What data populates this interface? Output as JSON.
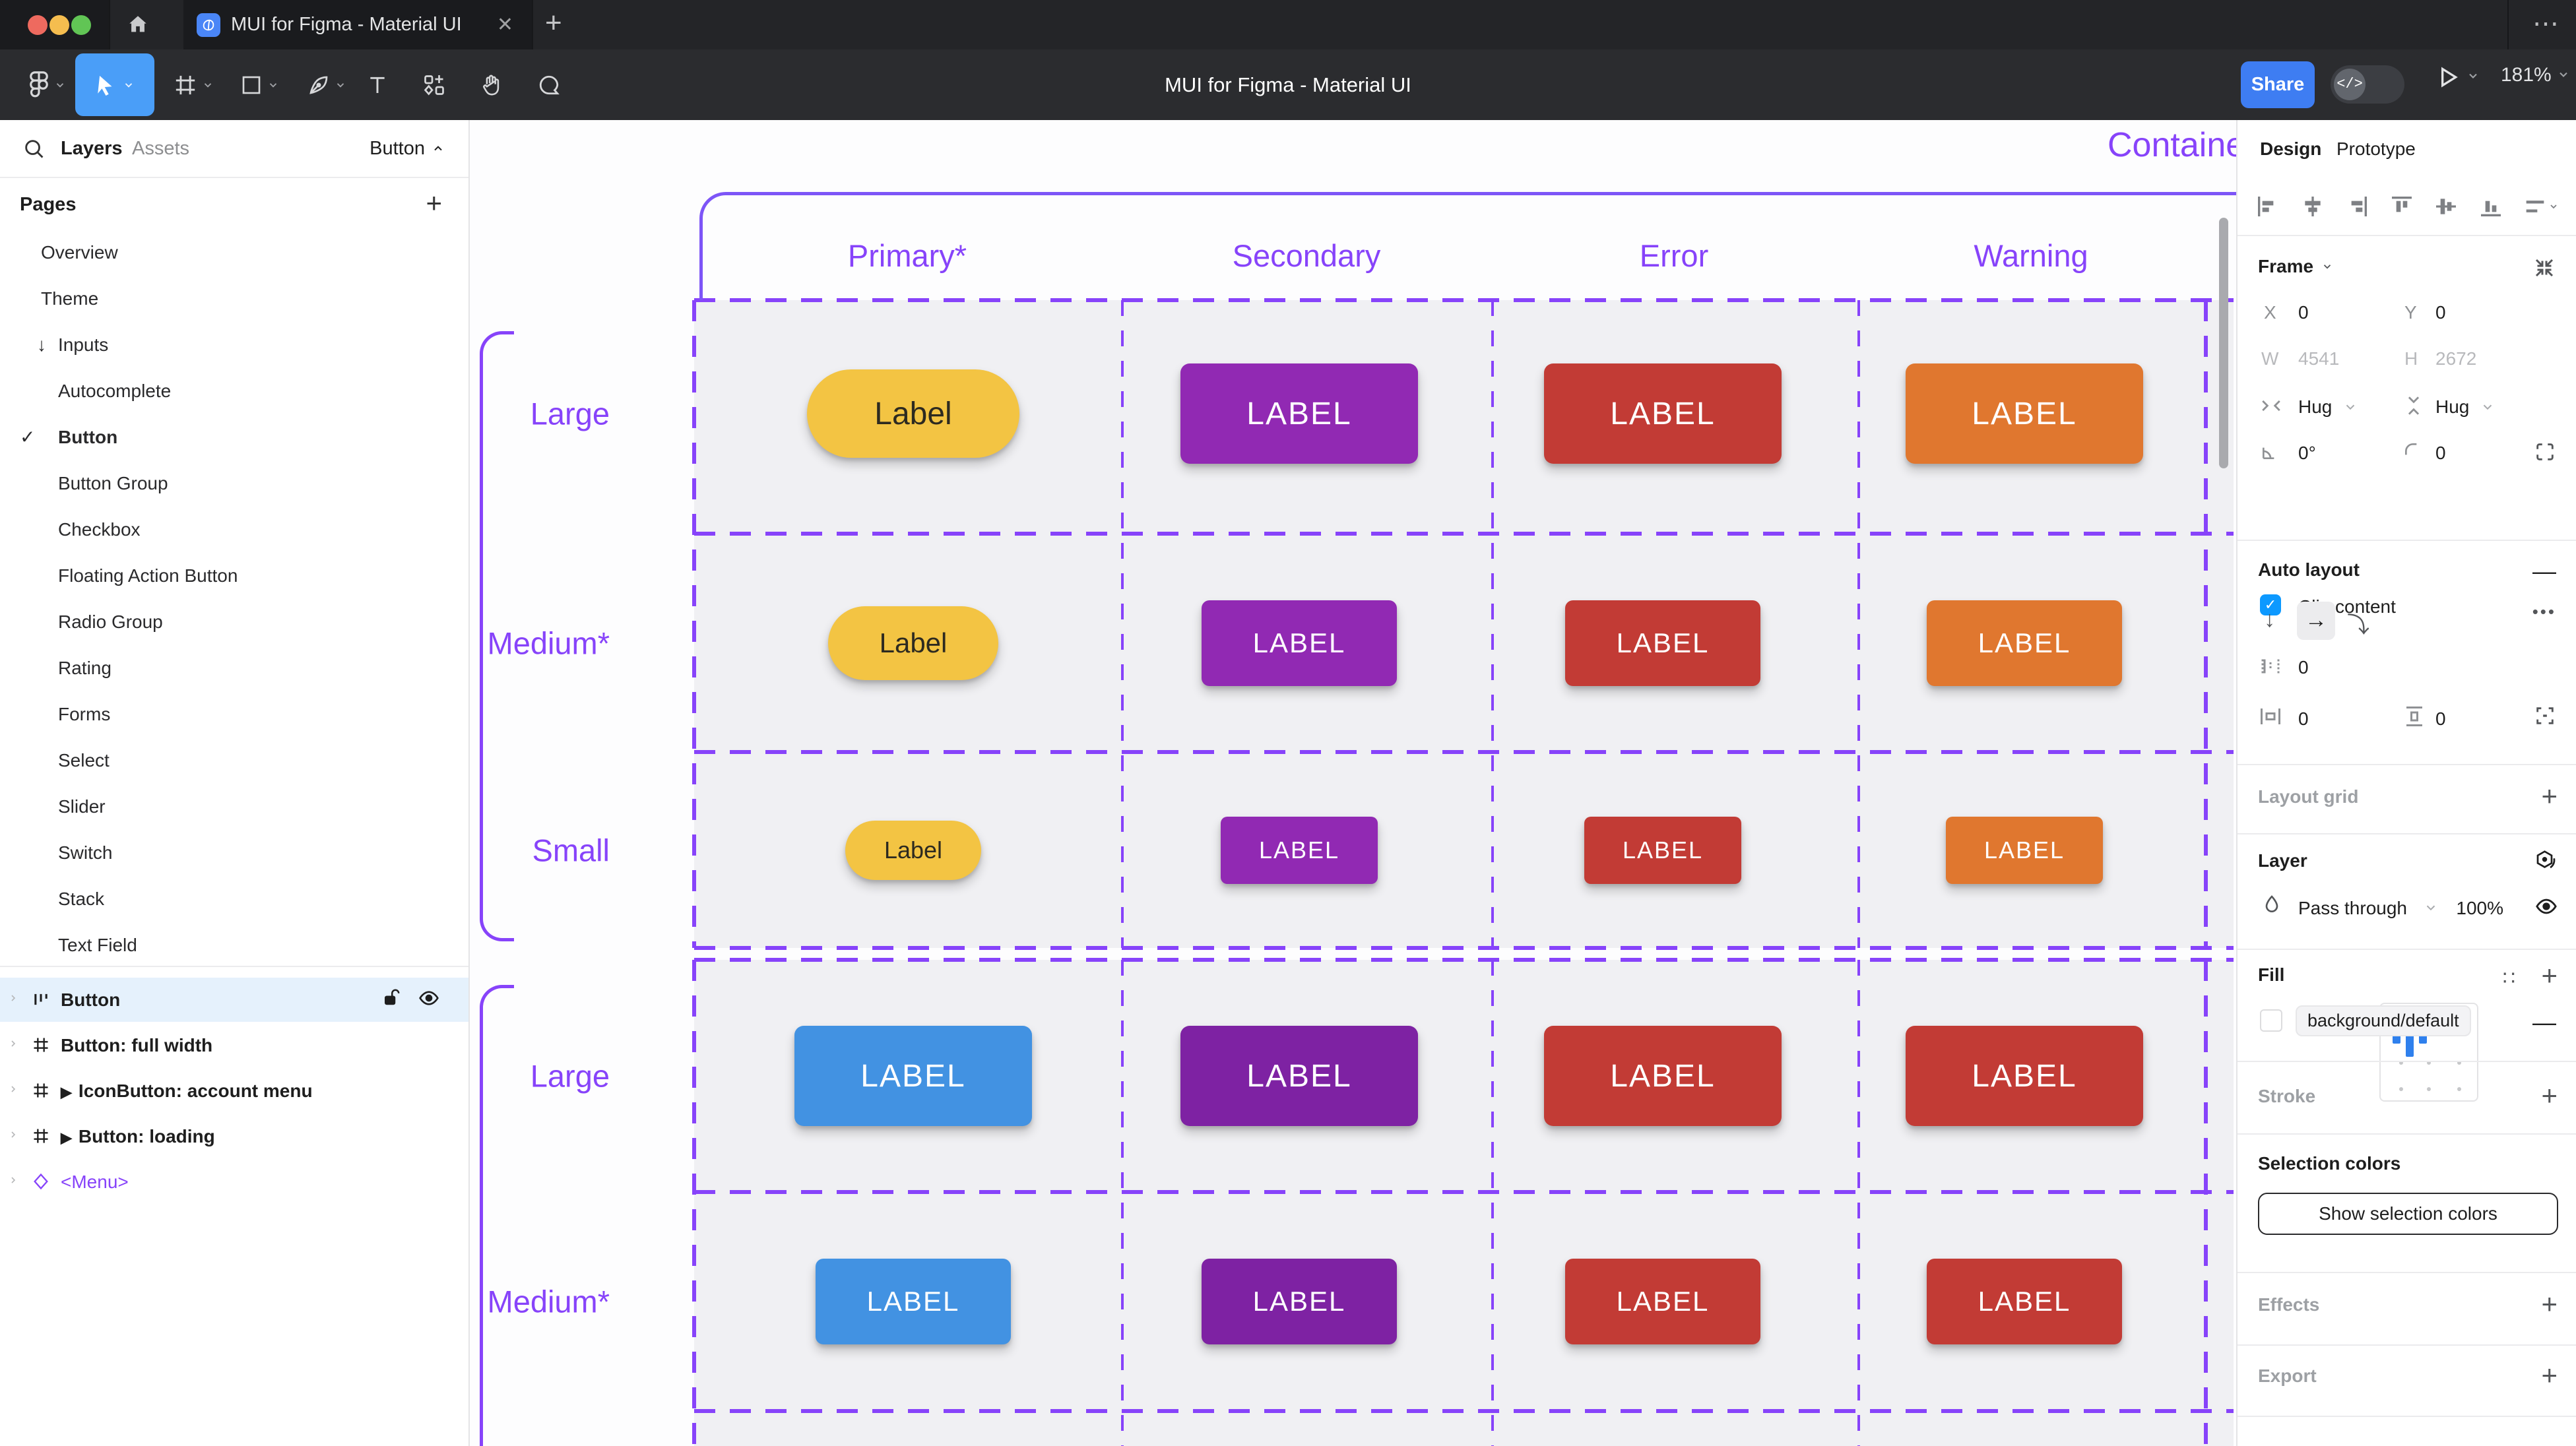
{
  "window": {
    "tab_title": "MUI for Figma - Material UI",
    "close_glyph": "✕",
    "new_tab_glyph": "+",
    "menu_dots_glyph": "⋯"
  },
  "toolbar": {
    "title": "MUI for Figma - Material UI",
    "share_label": "Share",
    "devmode_glyph": "</>",
    "zoom_level": "181%",
    "tools": [
      "figma-menu",
      "move",
      "frame",
      "rectangle",
      "pen",
      "text",
      "resources",
      "hand",
      "comment"
    ],
    "selected_tool": "move"
  },
  "left_sidebar": {
    "tab_layers": "Layers",
    "tab_assets": "Assets",
    "page_selector": "Button",
    "pages_header": "Pages",
    "add_page_glyph": "+",
    "check_glyph": "✓",
    "inputs_arrow_glyph": "↓",
    "instance_marker_glyph": "▶",
    "pages": [
      {
        "label": "Overview",
        "level": 0
      },
      {
        "label": "Theme",
        "level": 0
      },
      {
        "label": "Inputs",
        "level": 0,
        "arrow": true
      },
      {
        "label": "Autocomplete",
        "level": 1
      },
      {
        "label": "Button",
        "level": 1,
        "checked": true,
        "bold": true
      },
      {
        "label": "Button Group",
        "level": 1
      },
      {
        "label": "Checkbox",
        "level": 1
      },
      {
        "label": "Floating Action Button",
        "level": 1
      },
      {
        "label": "Radio Group",
        "level": 1
      },
      {
        "label": "Rating",
        "level": 1
      },
      {
        "label": "Forms",
        "level": 1
      },
      {
        "label": "Select",
        "level": 1
      },
      {
        "label": "Slider",
        "level": 1
      },
      {
        "label": "Switch",
        "level": 1
      },
      {
        "label": "Stack",
        "level": 1
      },
      {
        "label": "Text Field",
        "level": 1
      }
    ],
    "layers": [
      {
        "label": "Button",
        "icon": "auto-layout",
        "selected": true,
        "show_lock_eye": true
      },
      {
        "label": "Button: full width",
        "icon": "frame"
      },
      {
        "label": "IconButton: account menu",
        "icon": "frame",
        "marker": true
      },
      {
        "label": "Button: loading",
        "icon": "frame",
        "marker": true
      },
      {
        "label": "<Menu>",
        "icon": "diamond",
        "purple": true
      }
    ]
  },
  "canvas": {
    "frame_name": "Contained",
    "columns": [
      "Primary*",
      "Secondary",
      "Error",
      "Warning"
    ],
    "groups": [
      {
        "rows": [
          {
            "label": "Large",
            "size": "large",
            "buttons": [
              {
                "text": "Label",
                "bg": "#F3C443",
                "fg": "#2D2A20",
                "pill": true
              },
              {
                "text": "LABEL",
                "bg": "#9129B3",
                "fg": "#FFFFFF"
              },
              {
                "text": "LABEL",
                "bg": "#C23B35",
                "fg": "#FFFFFF"
              },
              {
                "text": "LABEL",
                "bg": "#E0772F",
                "fg": "#FFFFFF"
              }
            ]
          },
          {
            "label": "Medium*",
            "size": "medium",
            "buttons": [
              {
                "text": "Label",
                "bg": "#F3C443",
                "fg": "#2D2A20",
                "pill": true
              },
              {
                "text": "LABEL",
                "bg": "#9129B3",
                "fg": "#FFFFFF"
              },
              {
                "text": "LABEL",
                "bg": "#C23B35",
                "fg": "#FFFFFF"
              },
              {
                "text": "LABEL",
                "bg": "#E0772F",
                "fg": "#FFFFFF"
              }
            ]
          },
          {
            "label": "Small",
            "size": "small",
            "buttons": [
              {
                "text": "Label",
                "bg": "#F3C443",
                "fg": "#2D2A20",
                "pill": true
              },
              {
                "text": "LABEL",
                "bg": "#9129B3",
                "fg": "#FFFFFF"
              },
              {
                "text": "LABEL",
                "bg": "#C23B35",
                "fg": "#FFFFFF"
              },
              {
                "text": "LABEL",
                "bg": "#E0772F",
                "fg": "#FFFFFF"
              }
            ]
          }
        ]
      },
      {
        "rows": [
          {
            "label": "Large",
            "size": "large",
            "buttons": [
              {
                "text": "LABEL",
                "bg": "#4292E2",
                "fg": "#FFFFFF"
              },
              {
                "text": "LABEL",
                "bg": "#7E22A3",
                "fg": "#FFFFFF"
              },
              {
                "text": "LABEL",
                "bg": "#C23B35",
                "fg": "#FFFFFF"
              },
              {
                "text": "LABEL",
                "bg": "#C23B35",
                "fg": "#FFFFFF"
              }
            ]
          },
          {
            "label": "Medium*",
            "size": "medium",
            "buttons": [
              {
                "text": "LABEL",
                "bg": "#4292E2",
                "fg": "#FFFFFF"
              },
              {
                "text": "LABEL",
                "bg": "#7E22A3",
                "fg": "#FFFFFF"
              },
              {
                "text": "LABEL",
                "bg": "#C23B35",
                "fg": "#FFFFFF"
              },
              {
                "text": "LABEL",
                "bg": "#C23B35",
                "fg": "#FFFFFF"
              }
            ]
          }
        ]
      }
    ]
  },
  "right_sidebar": {
    "tab_design": "Design",
    "tab_prototype": "Prototype",
    "frame": {
      "header": "Frame",
      "x_label": "X",
      "x": "0",
      "y_label": "Y",
      "y": "0",
      "w_label": "W",
      "w": "4541",
      "h_label": "H",
      "h": "2672",
      "hug_h": "Hug",
      "hug_v": "Hug",
      "rotation": "0°",
      "radius": "0",
      "clip_label": "Clip content",
      "clip_glyph": "✓"
    },
    "auto_layout": {
      "header": "Auto layout",
      "gap": "0",
      "pad_h": "0",
      "pad_v": "0",
      "more_glyph": "•••",
      "remove_glyph": "—",
      "dir_down_glyph": "↓",
      "dir_right_glyph": "→",
      "wrap_glyph": "⤵"
    },
    "layout_grid": {
      "header": "Layout grid",
      "add_glyph": "+"
    },
    "layer": {
      "header": "Layer",
      "blend_mode": "Pass through",
      "opacity": "100%"
    },
    "fill": {
      "header": "Fill",
      "token": "background/default",
      "add_glyph": "+",
      "remove_glyph": "—",
      "styles_glyph": "∷"
    },
    "stroke": {
      "header": "Stroke",
      "add_glyph": "+"
    },
    "selection_colors": {
      "header": "Selection colors",
      "button_label": "Show selection colors"
    },
    "effects": {
      "header": "Effects",
      "add_glyph": "+"
    },
    "export": {
      "header": "Export",
      "add_glyph": "+"
    }
  },
  "colors": {
    "accent_blue": "#3E7DF2",
    "tool_selected_blue": "#4A9EF8",
    "checkbox_blue": "#0D99FF",
    "canvas_purple": "#8743FA",
    "frame_outline_purple": "#7D55F7",
    "selected_row_blue": "#E5F1FC",
    "traffic_red": "#EE6A5F",
    "traffic_yellow": "#F5BD4F",
    "traffic_green": "#61C555"
  }
}
